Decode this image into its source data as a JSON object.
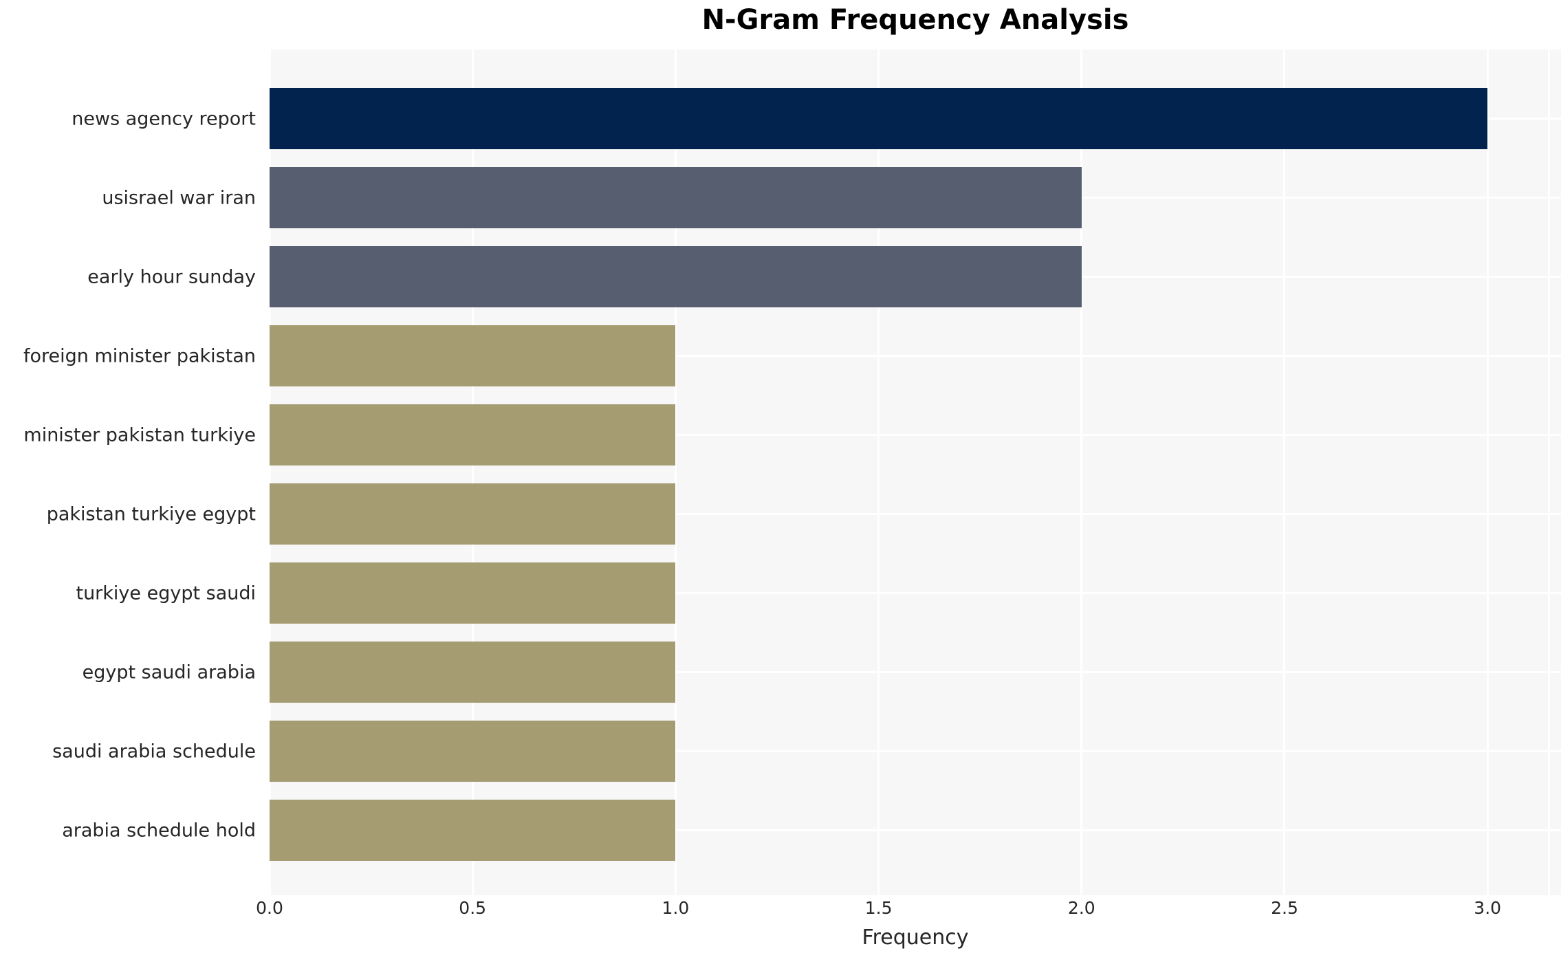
{
  "title": "N-Gram Frequency Analysis",
  "xlabel": "Frequency",
  "colors": {
    "plot_background": "#f7f7f8",
    "figure_background": "#ffffff",
    "gridline": "#ffffff",
    "text": "#262626",
    "title_text": "#000000",
    "navy": "#02234e",
    "slate": "#575e6f",
    "khaki": "#a59c71"
  },
  "chart_data": {
    "type": "bar",
    "orientation": "horizontal",
    "title": "N-Gram Frequency Analysis",
    "xlabel": "Frequency",
    "ylabel": "",
    "categories": [
      "news agency report",
      "usisrael war iran",
      "early hour sunday",
      "foreign minister pakistan",
      "minister pakistan turkiye",
      "pakistan turkiye egypt",
      "turkiye egypt saudi",
      "egypt saudi arabia",
      "saudi arabia schedule",
      "arabia schedule hold"
    ],
    "values": [
      3,
      2,
      2,
      1,
      1,
      1,
      1,
      1,
      1,
      1
    ],
    "bar_colors": [
      "#02234e",
      "#575e6f",
      "#575e6f",
      "#a59c71",
      "#a59c71",
      "#a59c71",
      "#a59c71",
      "#a59c71",
      "#a59c71",
      "#a59c71"
    ],
    "xticks": [
      0.0,
      0.5,
      1.0,
      1.5,
      2.0,
      2.5,
      3.0
    ],
    "xtick_labels": [
      "0.0",
      "0.5",
      "1.0",
      "1.5",
      "2.0",
      "2.5",
      "3.0"
    ],
    "xlim": [
      0,
      3.1809
    ],
    "grid": true,
    "legend": false
  }
}
